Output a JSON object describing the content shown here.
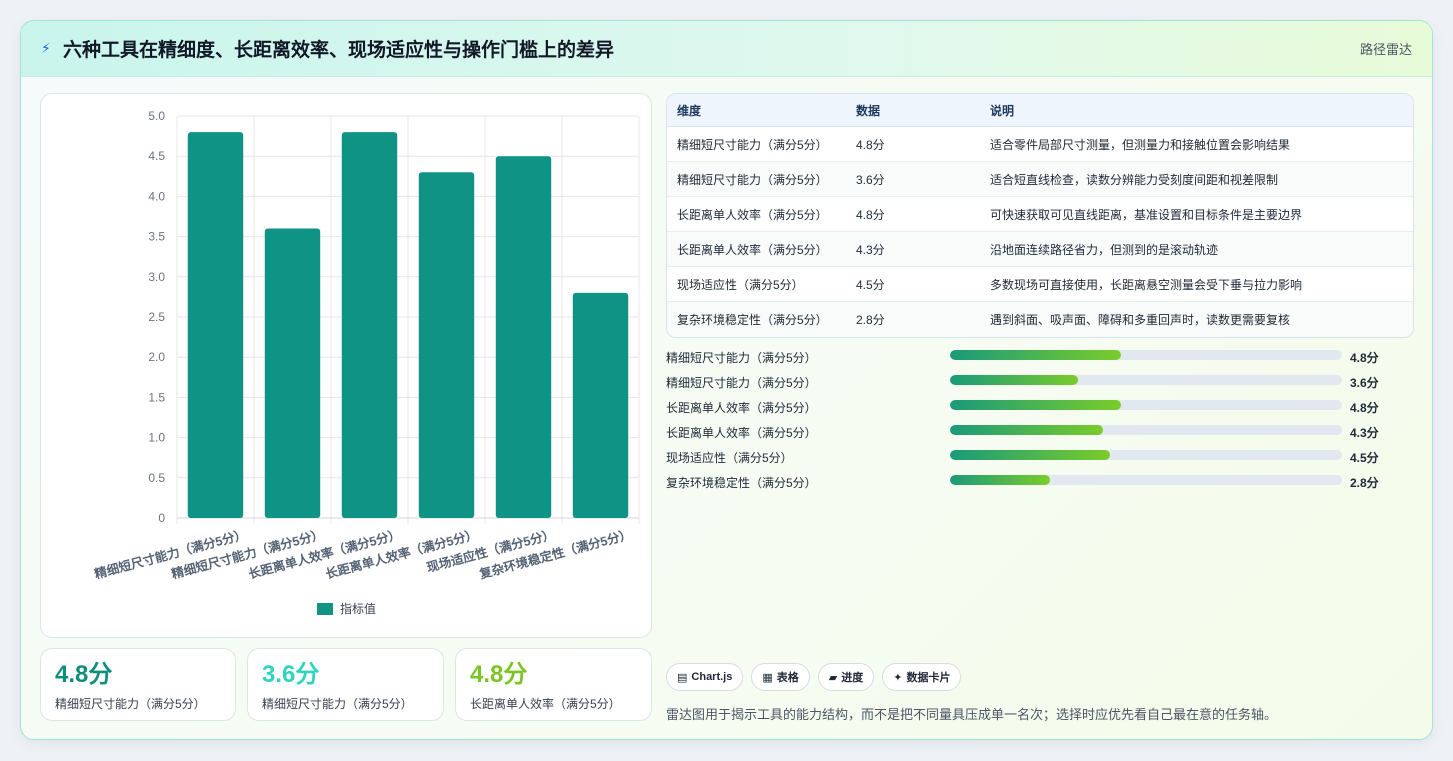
{
  "header": {
    "title": "六种工具在精细度、长距离效率、现场适应性与操作门槛上的差异",
    "tag": "路径雷达"
  },
  "chart_data": {
    "type": "bar",
    "categories": [
      "精细短尺寸能力（满分5分）",
      "精细短尺寸能力（满分5分）",
      "长距离单人效率（满分5分）",
      "长距离单人效率（满分5分）",
      "现场适应性（满分5分）",
      "复杂环境稳定性（满分5分）"
    ],
    "series": [
      {
        "name": "指标值",
        "values": [
          4.8,
          3.6,
          4.8,
          4.3,
          4.5,
          2.8
        ]
      }
    ],
    "y_ticks": [
      "0",
      "0.5",
      "1.0",
      "1.5",
      "2.0",
      "2.5",
      "3.0",
      "3.5",
      "4.0",
      "4.5",
      "5.0"
    ],
    "ylim": [
      0,
      5
    ],
    "legend": "bottom",
    "grid": true,
    "bar_color": "#0e9384"
  },
  "stats": [
    {
      "value": "4.8分",
      "label": "精细短尺寸能力（满分5分）",
      "color": "#0e8f7a"
    },
    {
      "value": "3.6分",
      "label": "精细短尺寸能力（满分5分）",
      "color": "#2dd4bf"
    },
    {
      "value": "4.8分",
      "label": "长距离单人效率（满分5分）",
      "color": "#7cc423"
    }
  ],
  "table": {
    "headers": [
      "维度",
      "数据",
      "说明"
    ],
    "rows": [
      [
        "精细短尺寸能力（满分5分）",
        "4.8分",
        "适合零件局部尺寸测量，但测量力和接触位置会影响结果"
      ],
      [
        "精细短尺寸能力（满分5分）",
        "3.6分",
        "适合短直线检查，读数分辨能力受刻度间距和视差限制"
      ],
      [
        "长距离单人效率（满分5分）",
        "4.8分",
        "可快速获取可见直线距离，基准设置和目标条件是主要边界"
      ],
      [
        "长距离单人效率（满分5分）",
        "4.3分",
        "沿地面连续路径省力，但测到的是滚动轨迹"
      ],
      [
        "现场适应性（满分5分）",
        "4.5分",
        "多数现场可直接使用，长距离悬空测量会受下垂与拉力影响"
      ],
      [
        "复杂环境稳定性（满分5分）",
        "2.8分",
        "遇到斜面、吸声面、障碍和多重回声时，读数更需要复核"
      ]
    ]
  },
  "progress": [
    {
      "label": "精细短尺寸能力（满分5分）",
      "value": 4.8,
      "text": "4.8分"
    },
    {
      "label": "精细短尺寸能力（满分5分）",
      "value": 3.6,
      "text": "3.6分"
    },
    {
      "label": "长距离单人效率（满分5分）",
      "value": 4.8,
      "text": "4.8分"
    },
    {
      "label": "长距离单人效率（满分5分）",
      "value": 4.3,
      "text": "4.3分"
    },
    {
      "label": "现场适应性（满分5分）",
      "value": 4.5,
      "text": "4.5分"
    },
    {
      "label": "复杂环境稳定性（满分5分）",
      "value": 2.8,
      "text": "2.8分"
    }
  ],
  "progress_max": 11,
  "chips": [
    {
      "icon": "chart-icon",
      "glyph": "▤",
      "label": "Chart.js"
    },
    {
      "icon": "table-icon",
      "glyph": "▦",
      "label": "表格"
    },
    {
      "icon": "progress-icon",
      "glyph": "▰",
      "label": "进度"
    },
    {
      "icon": "sparkle-icon",
      "glyph": "✦",
      "label": "数据卡片"
    }
  ],
  "note": "雷达图用于揭示工具的能力结构，而不是把不同量具压成单一名次；选择时应优先看自己最在意的任务轴。"
}
